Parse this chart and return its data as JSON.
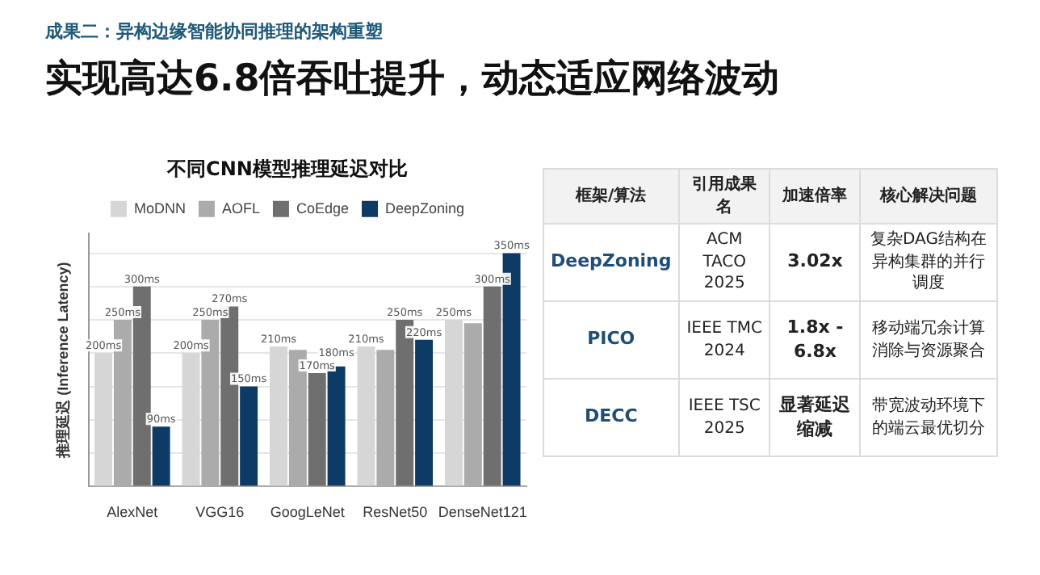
{
  "chart_data": [
    {
      "type": "other",
      "title": "实现高达6.8倍吞吐提升，动态适应网络波动",
      "subtitle": "成果二：异构边缘智能协同推理的架构重塑"
    },
    {
      "type": "bar",
      "title": "不同CNN模型推理延迟对比",
      "ylabel": "推理延迟 (Inference Latency)",
      "categories": [
        "AlexNet",
        "VGG16",
        "GoogLeNet",
        "ResNet50",
        "DenseNet121"
      ],
      "series": [
        {
          "name": "MoDNN",
          "color": "#d6d6d6",
          "values": [
            200,
            200,
            210,
            210,
            250
          ],
          "value_labels": [
            "200ms",
            "200ms",
            "210ms",
            "210ms",
            "250ms"
          ]
        },
        {
          "name": "AOFL",
          "color": "#ababab",
          "values": [
            250,
            250,
            205,
            205,
            245
          ],
          "value_labels": [
            "250ms",
            "250ms",
            null,
            null,
            null
          ]
        },
        {
          "name": "CoEdge",
          "color": "#6f6f6f",
          "values": [
            300,
            270,
            170,
            250,
            300
          ],
          "value_labels": [
            "300ms",
            "270ms",
            "170ms",
            "250ms",
            "300ms"
          ]
        },
        {
          "name": "DeepZoning",
          "color": "#0e3a66",
          "values": [
            90,
            150,
            180,
            220,
            350
          ],
          "value_labels": [
            "90ms",
            "150ms",
            "180ms",
            "220ms",
            "350ms"
          ]
        }
      ],
      "ylim": [
        0,
        380
      ],
      "yticks": [
        {
          "value": 0,
          "label": null
        },
        {
          "value": 50,
          "label": null
        },
        {
          "value": 100,
          "label": null
        },
        {
          "value": 150,
          "label": null
        },
        {
          "value": 200,
          "label": null
        },
        {
          "value": 250,
          "label": null
        },
        {
          "value": 300,
          "label": null
        },
        {
          "value": 350,
          "label": null
        }
      ],
      "grid": "y",
      "legend": "top"
    },
    {
      "type": "other",
      "categories": [
        "框架/算法",
        "引用成果名",
        "加速倍率",
        "核心解决问题"
      ],
      "annotations": [
        "DeepZoning",
        "ACM TACO 2025",
        "3.02x",
        "复杂DAG结构在异构集群的并行调度",
        "PICO",
        "IEEE TMC 2024",
        "1.8x - 6.8x",
        "移动端冗余计算消除与资源聚合",
        "DECC",
        "IEEE TSC 2025",
        "显著延迟缩减",
        "带宽波动环境下的端云最优切分"
      ]
    }
  ]
}
